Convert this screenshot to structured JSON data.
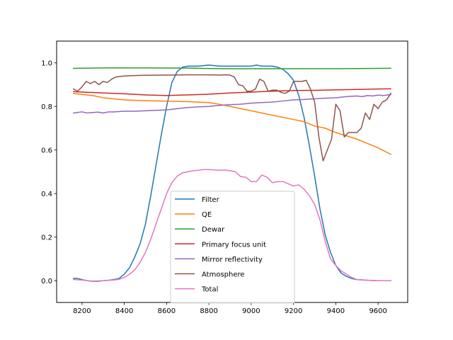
{
  "chart_data": {
    "type": "line",
    "title": "",
    "xlabel": "",
    "ylabel": "",
    "xlim": [
      8080,
      9740
    ],
    "ylim": [
      -0.1,
      1.1
    ],
    "xticks": [
      8200,
      8400,
      8600,
      8800,
      9000,
      9200,
      9400,
      9600
    ],
    "yticks": [
      0.0,
      0.2,
      0.4,
      0.6,
      0.8,
      1.0
    ],
    "grid": false,
    "legend_position": "lower-center",
    "series": [
      {
        "name": "Filter",
        "color": "#1f77b4",
        "points": [
          [
            8160,
            0.01
          ],
          [
            8180,
            0.01
          ],
          [
            8200,
            0.005
          ],
          [
            8225,
            0.0
          ],
          [
            8250,
            -0.003
          ],
          [
            8275,
            -0.003
          ],
          [
            8300,
            0.0
          ],
          [
            8325,
            0.002
          ],
          [
            8350,
            0.005
          ],
          [
            8375,
            0.01
          ],
          [
            8400,
            0.03
          ],
          [
            8425,
            0.06
          ],
          [
            8450,
            0.11
          ],
          [
            8475,
            0.17
          ],
          [
            8500,
            0.26
          ],
          [
            8525,
            0.39
          ],
          [
            8550,
            0.53
          ],
          [
            8575,
            0.67
          ],
          [
            8600,
            0.8
          ],
          [
            8625,
            0.91
          ],
          [
            8650,
            0.96
          ],
          [
            8675,
            0.98
          ],
          [
            8700,
            0.985
          ],
          [
            8750,
            0.985
          ],
          [
            8800,
            0.99
          ],
          [
            8850,
            0.985
          ],
          [
            8900,
            0.985
          ],
          [
            8950,
            0.985
          ],
          [
            9000,
            0.985
          ],
          [
            9025,
            0.99
          ],
          [
            9050,
            0.985
          ],
          [
            9100,
            0.985
          ],
          [
            9125,
            0.98
          ],
          [
            9150,
            0.97
          ],
          [
            9175,
            0.95
          ],
          [
            9200,
            0.92
          ],
          [
            9225,
            0.85
          ],
          [
            9250,
            0.75
          ],
          [
            9275,
            0.62
          ],
          [
            9300,
            0.48
          ],
          [
            9325,
            0.33
          ],
          [
            9350,
            0.21
          ],
          [
            9375,
            0.13
          ],
          [
            9400,
            0.07
          ],
          [
            9425,
            0.035
          ],
          [
            9450,
            0.02
          ],
          [
            9475,
            0.01
          ],
          [
            9500,
            0.005
          ],
          [
            9550,
            0.002
          ],
          [
            9600,
            0.0
          ],
          [
            9660,
            0.0
          ]
        ]
      },
      {
        "name": "QE",
        "color": "#ff7f0e",
        "points": [
          [
            8160,
            0.86
          ],
          [
            8200,
            0.855
          ],
          [
            8250,
            0.85
          ],
          [
            8300,
            0.84
          ],
          [
            8350,
            0.835
          ],
          [
            8400,
            0.83
          ],
          [
            8450,
            0.828
          ],
          [
            8500,
            0.826
          ],
          [
            8550,
            0.825
          ],
          [
            8600,
            0.824
          ],
          [
            8650,
            0.823
          ],
          [
            8700,
            0.822
          ],
          [
            8750,
            0.82
          ],
          [
            8800,
            0.818
          ],
          [
            8850,
            0.81
          ],
          [
            8900,
            0.8
          ],
          [
            8950,
            0.79
          ],
          [
            9000,
            0.78
          ],
          [
            9050,
            0.77
          ],
          [
            9100,
            0.76
          ],
          [
            9150,
            0.75
          ],
          [
            9200,
            0.74
          ],
          [
            9250,
            0.73
          ],
          [
            9300,
            0.71
          ],
          [
            9350,
            0.7
          ],
          [
            9400,
            0.68
          ],
          [
            9450,
            0.665
          ],
          [
            9500,
            0.65
          ],
          [
            9550,
            0.63
          ],
          [
            9600,
            0.61
          ],
          [
            9660,
            0.58
          ]
        ]
      },
      {
        "name": "Dewar",
        "color": "#2ca02c",
        "points": [
          [
            8160,
            0.975
          ],
          [
            8300,
            0.977
          ],
          [
            8500,
            0.977
          ],
          [
            8700,
            0.976
          ],
          [
            8800,
            0.974
          ],
          [
            8900,
            0.973
          ],
          [
            9000,
            0.973
          ],
          [
            9200,
            0.973
          ],
          [
            9400,
            0.973
          ],
          [
            9500,
            0.974
          ],
          [
            9660,
            0.975
          ]
        ]
      },
      {
        "name": "Primary focus unit",
        "color": "#d62728",
        "points": [
          [
            8160,
            0.868
          ],
          [
            8200,
            0.866
          ],
          [
            8300,
            0.862
          ],
          [
            8400,
            0.858
          ],
          [
            8500,
            0.853
          ],
          [
            8600,
            0.85
          ],
          [
            8700,
            0.853
          ],
          [
            8800,
            0.856
          ],
          [
            8900,
            0.862
          ],
          [
            9000,
            0.866
          ],
          [
            9100,
            0.87
          ],
          [
            9200,
            0.873
          ],
          [
            9300,
            0.874
          ],
          [
            9400,
            0.876
          ],
          [
            9500,
            0.878
          ],
          [
            9600,
            0.88
          ],
          [
            9660,
            0.881
          ]
        ]
      },
      {
        "name": "Mirror reflectivity",
        "color": "#9467bd",
        "points": [
          [
            8160,
            0.77
          ],
          [
            8200,
            0.775
          ],
          [
            8225,
            0.77
          ],
          [
            8250,
            0.772
          ],
          [
            8275,
            0.774
          ],
          [
            8300,
            0.77
          ],
          [
            8325,
            0.775
          ],
          [
            8350,
            0.775
          ],
          [
            8400,
            0.778
          ],
          [
            8450,
            0.778
          ],
          [
            8500,
            0.78
          ],
          [
            8550,
            0.782
          ],
          [
            8600,
            0.784
          ],
          [
            8650,
            0.79
          ],
          [
            8700,
            0.795
          ],
          [
            8750,
            0.798
          ],
          [
            8800,
            0.8
          ],
          [
            8850,
            0.805
          ],
          [
            8900,
            0.808
          ],
          [
            8950,
            0.81
          ],
          [
            9000,
            0.815
          ],
          [
            9050,
            0.818
          ],
          [
            9100,
            0.82
          ],
          [
            9150,
            0.825
          ],
          [
            9200,
            0.83
          ],
          [
            9250,
            0.832
          ],
          [
            9300,
            0.835
          ],
          [
            9350,
            0.838
          ],
          [
            9400,
            0.84
          ],
          [
            9450,
            0.845
          ],
          [
            9500,
            0.848
          ],
          [
            9525,
            0.845
          ],
          [
            9550,
            0.85
          ],
          [
            9575,
            0.848
          ],
          [
            9600,
            0.852
          ],
          [
            9625,
            0.85
          ],
          [
            9660,
            0.855
          ]
        ]
      },
      {
        "name": "Atmosphere",
        "color": "#8c564b",
        "points": [
          [
            8160,
            0.88
          ],
          [
            8180,
            0.87
          ],
          [
            8200,
            0.89
          ],
          [
            8220,
            0.915
          ],
          [
            8240,
            0.905
          ],
          [
            8260,
            0.915
          ],
          [
            8280,
            0.9
          ],
          [
            8300,
            0.915
          ],
          [
            8320,
            0.91
          ],
          [
            8340,
            0.925
          ],
          [
            8360,
            0.935
          ],
          [
            8400,
            0.94
          ],
          [
            8450,
            0.942
          ],
          [
            8500,
            0.943
          ],
          [
            8600,
            0.944
          ],
          [
            8700,
            0.945
          ],
          [
            8800,
            0.945
          ],
          [
            8850,
            0.944
          ],
          [
            8880,
            0.945
          ],
          [
            8900,
            0.944
          ],
          [
            8920,
            0.935
          ],
          [
            8940,
            0.9
          ],
          [
            8960,
            0.895
          ],
          [
            8980,
            0.87
          ],
          [
            9000,
            0.87
          ],
          [
            9020,
            0.88
          ],
          [
            9040,
            0.925
          ],
          [
            9060,
            0.915
          ],
          [
            9080,
            0.87
          ],
          [
            9100,
            0.875
          ],
          [
            9120,
            0.875
          ],
          [
            9140,
            0.865
          ],
          [
            9160,
            0.86
          ],
          [
            9180,
            0.87
          ],
          [
            9200,
            0.915
          ],
          [
            9220,
            0.915
          ],
          [
            9240,
            0.915
          ],
          [
            9260,
            0.92
          ],
          [
            9280,
            0.88
          ],
          [
            9300,
            0.82
          ],
          [
            9320,
            0.66
          ],
          [
            9340,
            0.55
          ],
          [
            9360,
            0.6
          ],
          [
            9380,
            0.65
          ],
          [
            9400,
            0.81
          ],
          [
            9420,
            0.78
          ],
          [
            9440,
            0.66
          ],
          [
            9460,
            0.68
          ],
          [
            9480,
            0.68
          ],
          [
            9500,
            0.68
          ],
          [
            9520,
            0.7
          ],
          [
            9540,
            0.77
          ],
          [
            9560,
            0.74
          ],
          [
            9580,
            0.81
          ],
          [
            9600,
            0.79
          ],
          [
            9620,
            0.82
          ],
          [
            9640,
            0.83
          ],
          [
            9660,
            0.86
          ]
        ]
      },
      {
        "name": "Total",
        "color": "#e377c2",
        "points": [
          [
            8160,
            0.005
          ],
          [
            8200,
            0.003
          ],
          [
            8250,
            -0.002
          ],
          [
            8300,
            0.0
          ],
          [
            8350,
            0.003
          ],
          [
            8375,
            0.006
          ],
          [
            8400,
            0.015
          ],
          [
            8425,
            0.03
          ],
          [
            8450,
            0.05
          ],
          [
            8475,
            0.085
          ],
          [
            8500,
            0.13
          ],
          [
            8525,
            0.19
          ],
          [
            8550,
            0.26
          ],
          [
            8575,
            0.33
          ],
          [
            8600,
            0.4
          ],
          [
            8625,
            0.45
          ],
          [
            8650,
            0.48
          ],
          [
            8675,
            0.495
          ],
          [
            8700,
            0.5
          ],
          [
            8725,
            0.505
          ],
          [
            8750,
            0.507
          ],
          [
            8775,
            0.51
          ],
          [
            8800,
            0.51
          ],
          [
            8850,
            0.507
          ],
          [
            8875,
            0.508
          ],
          [
            8900,
            0.505
          ],
          [
            8925,
            0.5
          ],
          [
            8950,
            0.478
          ],
          [
            8975,
            0.475
          ],
          [
            9000,
            0.455
          ],
          [
            9025,
            0.455
          ],
          [
            9050,
            0.485
          ],
          [
            9075,
            0.475
          ],
          [
            9100,
            0.45
          ],
          [
            9125,
            0.455
          ],
          [
            9150,
            0.455
          ],
          [
            9175,
            0.445
          ],
          [
            9200,
            0.435
          ],
          [
            9225,
            0.44
          ],
          [
            9250,
            0.42
          ],
          [
            9275,
            0.39
          ],
          [
            9300,
            0.35
          ],
          [
            9325,
            0.28
          ],
          [
            9350,
            0.18
          ],
          [
            9375,
            0.1
          ],
          [
            9400,
            0.07
          ],
          [
            9425,
            0.045
          ],
          [
            9450,
            0.03
          ],
          [
            9475,
            0.015
          ],
          [
            9500,
            0.005
          ],
          [
            9550,
            0.002
          ],
          [
            9600,
            0.0
          ],
          [
            9660,
            0.0
          ]
        ]
      }
    ]
  }
}
